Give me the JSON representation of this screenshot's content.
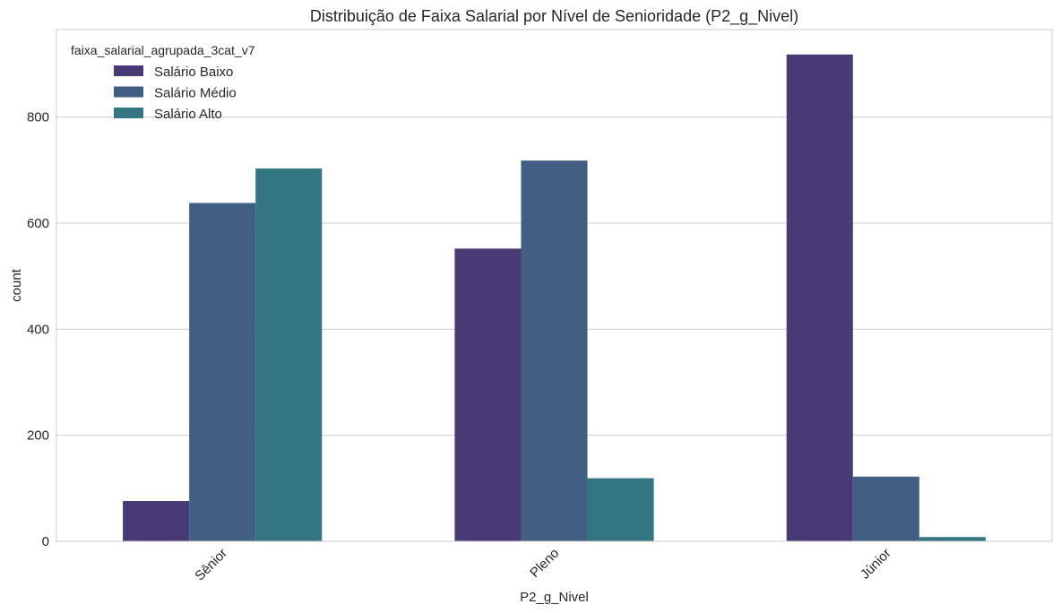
{
  "chart_data": {
    "type": "bar",
    "title": "Distribuição de Faixa Salarial por Nível de Senioridade (P2_g_Nivel)",
    "xlabel": "P2_g_Nivel",
    "ylabel": "count",
    "categories": [
      "Sênior",
      "Pleno",
      "Júnior"
    ],
    "series": [
      {
        "name": "Salário Baixo",
        "color": "#483a74",
        "values": [
          76,
          552,
          918
        ]
      },
      {
        "name": "Salário Médio",
        "color": "#425e82",
        "values": [
          638,
          718,
          122
        ]
      },
      {
        "name": "Salário Alto",
        "color": "#337580",
        "values": [
          703,
          119,
          8
        ]
      }
    ],
    "ylim": [
      0,
      965
    ],
    "yticks": [
      0,
      200,
      400,
      600,
      800
    ],
    "grid": "horizontal",
    "legend": {
      "title": "faixa_salarial_agrupada_3cat_v7",
      "position": "top-left"
    }
  }
}
